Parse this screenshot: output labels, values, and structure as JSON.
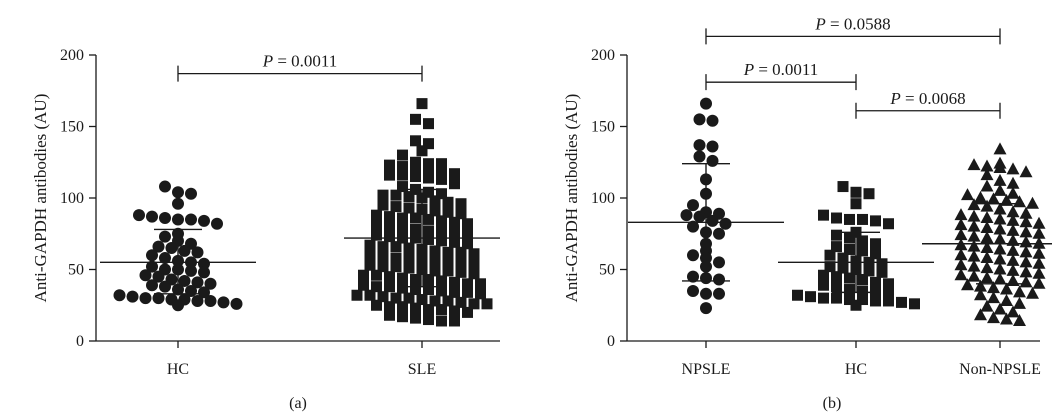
{
  "chart_data": [
    {
      "type": "scatter",
      "panel_label": "(a)",
      "ylabel": "Anti-GAPDH antibodies (AU)",
      "ylim": [
        0,
        200
      ],
      "yticks": [
        0,
        50,
        100,
        150,
        200
      ],
      "categories": [
        "HC",
        "SLE"
      ],
      "marker": [
        "circle",
        "square"
      ],
      "groups": [
        {
          "category": "HC",
          "mean": 55,
          "sd_low": 33,
          "sd_high": 78,
          "values": [
            108,
            104,
            103,
            96,
            88,
            87,
            86,
            85,
            85,
            84,
            82,
            75,
            73,
            70,
            68,
            66,
            65,
            63,
            62,
            60,
            58,
            56,
            55,
            54,
            52,
            50,
            50,
            49,
            48,
            46,
            45,
            43,
            42,
            41,
            40,
            39,
            38,
            36,
            35,
            34,
            32,
            31,
            30,
            30,
            29,
            29,
            28,
            28,
            27,
            26,
            25
          ]
        },
        {
          "category": "SLE",
          "mean": 72,
          "sd_low": 38,
          "sd_high": 106,
          "values": [
            166,
            155,
            152,
            140,
            138,
            133,
            130,
            125,
            124,
            124,
            123,
            122,
            121,
            120,
            118,
            117,
            116,
            116,
            115,
            114,
            113,
            110,
            108,
            106,
            104,
            103,
            102,
            102,
            101,
            100,
            98,
            97,
            96,
            95,
            94,
            93,
            92,
            91,
            90,
            89,
            88,
            87,
            86,
            86,
            85,
            84,
            83,
            82,
            81,
            80,
            79,
            78,
            77,
            77,
            76,
            75,
            74,
            73,
            72,
            72,
            71,
            70,
            69,
            68,
            67,
            66,
            66,
            65,
            64,
            63,
            62,
            62,
            61,
            60,
            59,
            58,
            58,
            57,
            56,
            55,
            55,
            54,
            53,
            52,
            52,
            51,
            50,
            49,
            49,
            48,
            47,
            46,
            46,
            45,
            44,
            43,
            43,
            42,
            41,
            40,
            40,
            39,
            38,
            38,
            37,
            36,
            36,
            35,
            34,
            34,
            33,
            32,
            32,
            31,
            30,
            30,
            29,
            28,
            28,
            27,
            26,
            26,
            25,
            24,
            24,
            23,
            22,
            22,
            21,
            20,
            18,
            17,
            16,
            15,
            14,
            14
          ]
        }
      ],
      "annotations": [
        {
          "between": [
            "HC",
            "SLE"
          ],
          "text": "P = 0.0011",
          "y": 187
        }
      ]
    },
    {
      "type": "scatter",
      "panel_label": "(b)",
      "ylabel": "Anti-GAPDH antibodies (AU)",
      "ylim": [
        0,
        200
      ],
      "yticks": [
        0,
        50,
        100,
        150,
        200
      ],
      "categories": [
        "NPSLE",
        "HC",
        "Non-NPSLE"
      ],
      "marker": [
        "circle",
        "square",
        "triangle"
      ],
      "groups": [
        {
          "category": "NPSLE",
          "mean": 83,
          "sd_low": 42,
          "sd_high": 124,
          "values": [
            166,
            155,
            154,
            137,
            136,
            129,
            126,
            113,
            103,
            95,
            90,
            89,
            88,
            87,
            84,
            82,
            80,
            76,
            75,
            68,
            63,
            60,
            58,
            55,
            52,
            45,
            44,
            43,
            35,
            33,
            33,
            23
          ]
        },
        {
          "category": "HC",
          "mean": 55,
          "sd_low": 34,
          "sd_high": 76,
          "values": [
            108,
            104,
            103,
            96,
            88,
            86,
            85,
            85,
            84,
            82,
            76,
            74,
            72,
            70,
            68,
            66,
            64,
            63,
            61,
            60,
            58,
            56,
            55,
            54,
            52,
            51,
            50,
            49,
            48,
            46,
            45,
            44,
            43,
            41,
            40,
            39,
            38,
            36,
            35,
            34,
            33,
            32,
            31,
            30,
            30,
            29,
            29,
            28,
            28,
            27,
            26,
            25
          ]
        },
        {
          "category": "Non-NPSLE",
          "mean": 68,
          "sd_low": 40,
          "sd_high": 96,
          "values": [
            134,
            124,
            123,
            122,
            121,
            120,
            118,
            116,
            112,
            110,
            108,
            105,
            103,
            102,
            100,
            99,
            98,
            97,
            96,
            95,
            94,
            92,
            90,
            89,
            88,
            87,
            86,
            85,
            84,
            83,
            82,
            81,
            80,
            79,
            78,
            77,
            76,
            75,
            74,
            73,
            72,
            71,
            70,
            69,
            68,
            67,
            66,
            65,
            64,
            63,
            62,
            61,
            60,
            59,
            58,
            57,
            56,
            55,
            54,
            53,
            52,
            51,
            50,
            49,
            48,
            47,
            46,
            45,
            44,
            43,
            42,
            41,
            40,
            39,
            38,
            37,
            36,
            34,
            33,
            32,
            30,
            28,
            26,
            24,
            22,
            20,
            18,
            16,
            15,
            14
          ]
        }
      ],
      "annotations": [
        {
          "between": [
            "NPSLE",
            "HC"
          ],
          "text": "P = 0.0011",
          "y": 181
        },
        {
          "between": [
            "HC",
            "Non-NPSLE"
          ],
          "text": "P = 0.0068",
          "y": 161
        },
        {
          "between": [
            "NPSLE",
            "Non-NPSLE"
          ],
          "text": "P = 0.0588",
          "y": 213
        }
      ]
    }
  ]
}
